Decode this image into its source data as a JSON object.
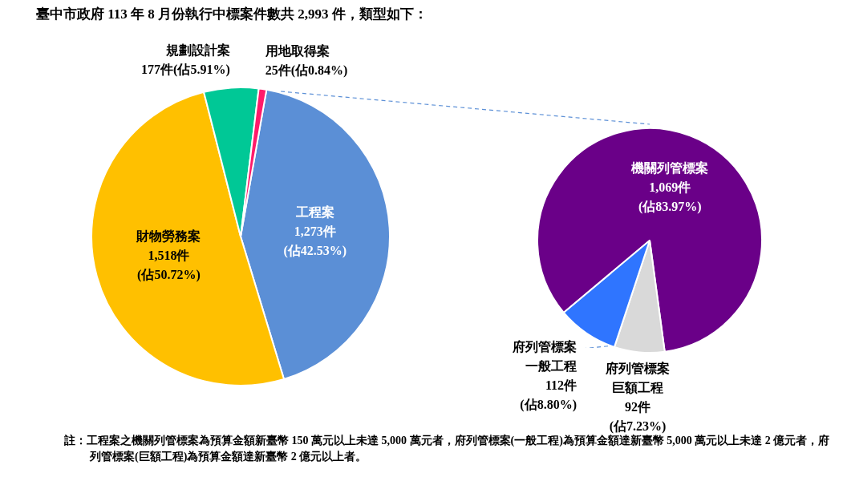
{
  "chart_data": [
    {
      "type": "pie",
      "title": "臺中市政府 113 年 8 月份執行中標案件數共 2,993 件，類型如下：",
      "categories": [
        "工程案",
        "財物勞務案",
        "規劃設計案",
        "用地取得案"
      ],
      "values": [
        1273,
        1518,
        177,
        25
      ],
      "value_labels": [
        "1,273件\n(佔42.53%)",
        "1,518件\n(佔50.72%)",
        "177件(佔5.91%)",
        "25件(佔0.84%)"
      ],
      "colors": [
        "#5b8fd6",
        "#ffc000",
        "#00c896",
        "#ff1a6a"
      ],
      "annotations": [
        "註：工程案之機關列管標案為預算金額新臺幣 150 萬元以上未達 5,000 萬元者，府列管標案(一般工程)為預算金額達新臺幣 5,000 萬元以上未達 2 億元者，府列管標案(巨額工程)為預算金額達新臺幣 2 億元以上者。"
      ]
    },
    {
      "type": "pie",
      "categories": [
        "機關列管標案",
        "府列管標案巨額工程",
        "府列管標案一般工程"
      ],
      "values": [
        1069,
        92,
        112
      ],
      "value_labels": [
        "1,069件\n(佔83.97%)",
        "92件\n(佔7.23%)",
        "112件\n(佔8.80%)"
      ],
      "colors": [
        "#6a0088",
        "#d9d9d9",
        "#2f75ff"
      ]
    }
  ]
}
